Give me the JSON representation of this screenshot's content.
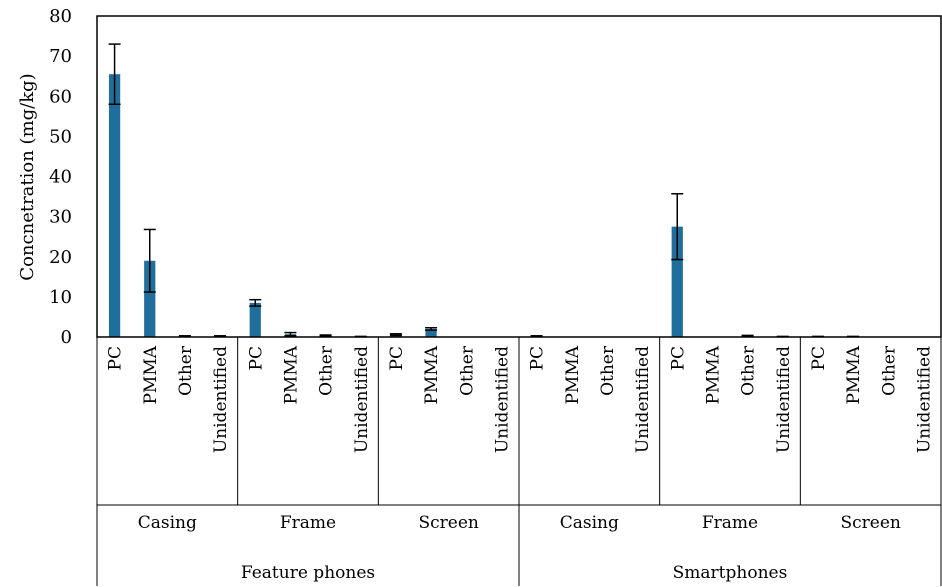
{
  "chart_data": {
    "type": "bar",
    "title": "",
    "ylabel": "Concnetration (mg/kg)",
    "ylim": [
      0,
      80
    ],
    "yticks": [
      0,
      10,
      20,
      30,
      40,
      50,
      60,
      70,
      80
    ],
    "grid": false,
    "legend": "none",
    "bar_color": "#1f6e9c",
    "groups": [
      {
        "label": "Feature phones",
        "subgroups": [
          {
            "label": "Casing",
            "categories": [
              "PC",
              "PMMA",
              "Other",
              "Unidentified"
            ],
            "values": [
              65.5,
              19.0,
              0.2,
              0.2
            ],
            "errors": [
              7.5,
              7.8,
              0.1,
              0.1
            ]
          },
          {
            "label": "Frame",
            "categories": [
              "PC",
              "PMMA",
              "Other",
              "Unidentified"
            ],
            "values": [
              8.5,
              0.7,
              0.4,
              0.1
            ],
            "errors": [
              0.8,
              0.4,
              0.1,
              0.05
            ]
          },
          {
            "label": "Screen",
            "categories": [
              "PC",
              "PMMA",
              "Other",
              "Unidentified"
            ],
            "values": [
              0.6,
              2.0,
              0.0,
              0.0
            ],
            "errors": [
              0.2,
              0.3,
              0.0,
              0.0
            ]
          }
        ]
      },
      {
        "label": "Smartphones",
        "subgroups": [
          {
            "label": "Casing",
            "categories": [
              "PC",
              "PMMA",
              "Other",
              "Unidentified"
            ],
            "values": [
              0.2,
              0.0,
              0.05,
              0.0
            ],
            "errors": [
              0.1,
              0.0,
              0.0,
              0.0
            ]
          },
          {
            "label": "Frame",
            "categories": [
              "PC",
              "PMMA",
              "Other",
              "Unidentified"
            ],
            "values": [
              27.5,
              0.0,
              0.3,
              0.1
            ],
            "errors": [
              8.2,
              0.0,
              0.1,
              0.05
            ]
          },
          {
            "label": "Screen",
            "categories": [
              "PC",
              "PMMA",
              "Other",
              "Unidentified"
            ],
            "values": [
              0.1,
              0.1,
              0.0,
              0.0
            ],
            "errors": [
              0.05,
              0.05,
              0.0,
              0.0
            ]
          }
        ]
      }
    ]
  }
}
